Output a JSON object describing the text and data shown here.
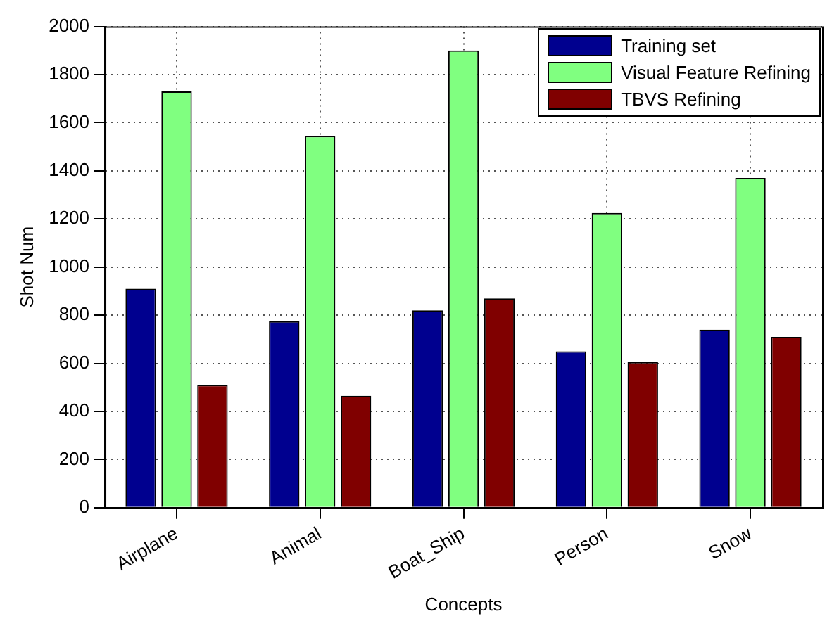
{
  "chart_data": {
    "type": "bar",
    "xlabel": "Concepts",
    "ylabel": "Shot Num",
    "categories": [
      "Airplane",
      "Animal",
      "Boat_Ship",
      "Person",
      "Snow"
    ],
    "series": [
      {
        "name": "Training set",
        "color": "#00008f",
        "values": [
          910,
          775,
          820,
          650,
          740
        ]
      },
      {
        "name": "Visual Feature Refining",
        "color": "#80ff80",
        "values": [
          1730,
          1545,
          1900,
          1225,
          1370
        ]
      },
      {
        "name": "TBVS Refining",
        "color": "#800000",
        "values": [
          510,
          465,
          870,
          605,
          710
        ]
      }
    ],
    "ylim": [
      0,
      2000
    ],
    "yticks": [
      0,
      200,
      400,
      600,
      800,
      1000,
      1200,
      1400,
      1600,
      1800,
      2000
    ],
    "grid": true,
    "legend": "top right"
  }
}
